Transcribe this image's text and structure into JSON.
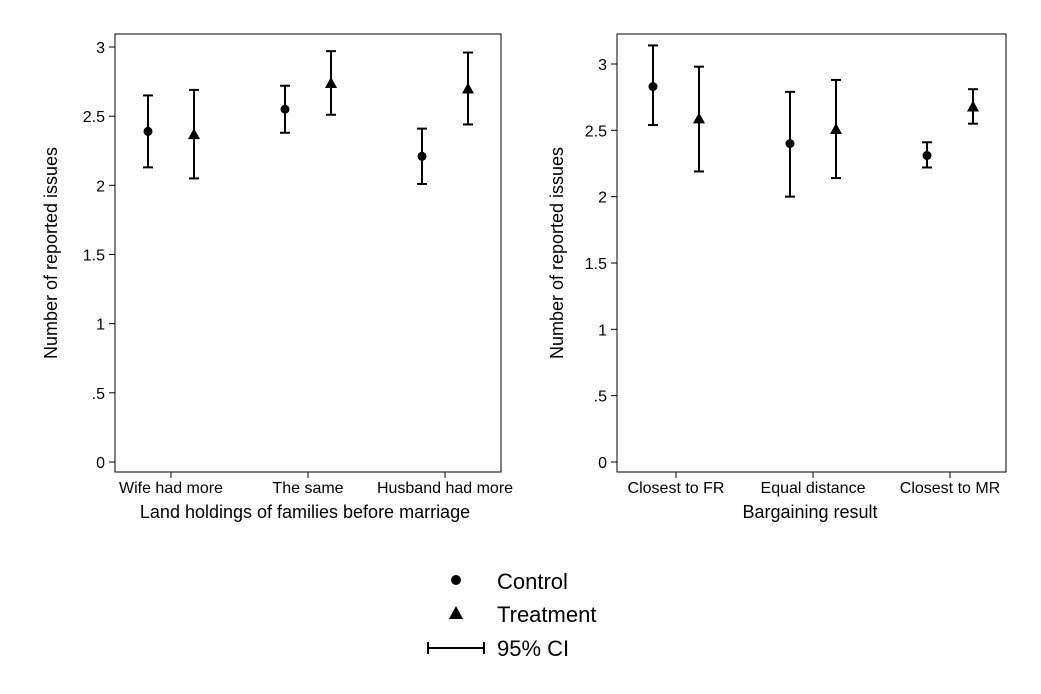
{
  "chart_data": [
    {
      "type": "scatter",
      "title": "",
      "xlabel": "Land holdings of families before marriage",
      "ylabel": "Number of reported issues",
      "ylim": [
        0,
        3
      ],
      "yticks": [
        {
          "value": 0,
          "label": "0"
        },
        {
          "value": 0.5,
          "label": ".5"
        },
        {
          "value": 1,
          "label": "1"
        },
        {
          "value": 1.5,
          "label": "1.5"
        },
        {
          "value": 2,
          "label": "2"
        },
        {
          "value": 2.5,
          "label": "2.5"
        },
        {
          "value": 3,
          "label": "3"
        }
      ],
      "categories": [
        "Wife had more",
        "The same",
        "Husband had more"
      ],
      "series": [
        {
          "name": "Control",
          "marker": "circle",
          "values": [
            2.39,
            2.55,
            2.21
          ],
          "lower": [
            2.13,
            2.38,
            2.01
          ],
          "upper": [
            2.65,
            2.72,
            2.41
          ]
        },
        {
          "name": "Treatment",
          "marker": "triangle",
          "values": [
            2.37,
            2.74,
            2.7
          ],
          "lower": [
            2.05,
            2.51,
            2.44
          ],
          "upper": [
            2.69,
            2.97,
            2.96
          ]
        }
      ],
      "grid": false
    },
    {
      "type": "scatter",
      "title": "",
      "xlabel": "Bargaining result",
      "ylabel": "Number of reported issues",
      "ylim": [
        0,
        3
      ],
      "yticks": [
        {
          "value": 0,
          "label": "0"
        },
        {
          "value": 0.5,
          "label": ".5"
        },
        {
          "value": 1,
          "label": "1"
        },
        {
          "value": 1.5,
          "label": "1.5"
        },
        {
          "value": 2,
          "label": "2"
        },
        {
          "value": 2.5,
          "label": "2.5"
        },
        {
          "value": 3,
          "label": "3"
        }
      ],
      "categories": [
        "Closest to FR",
        "Equal distance",
        "Closest to MR"
      ],
      "series": [
        {
          "name": "Control",
          "marker": "circle",
          "values": [
            2.83,
            2.4,
            2.31
          ],
          "lower": [
            2.54,
            2.0,
            2.22
          ],
          "upper": [
            3.14,
            2.79,
            2.41
          ]
        },
        {
          "name": "Treatment",
          "marker": "triangle",
          "values": [
            2.59,
            2.51,
            2.68
          ],
          "lower": [
            2.19,
            2.14,
            2.55
          ],
          "upper": [
            2.98,
            2.88,
            2.81
          ]
        }
      ],
      "grid": false
    }
  ],
  "legend": {
    "placement": "bottom-center",
    "items": [
      {
        "label": "Control",
        "marker": "circle"
      },
      {
        "label": "Treatment",
        "marker": "triangle"
      },
      {
        "label": "95% CI",
        "marker": "ci-bar"
      }
    ]
  },
  "colors": {
    "ink": "#000000",
    "background": "#ffffff"
  }
}
